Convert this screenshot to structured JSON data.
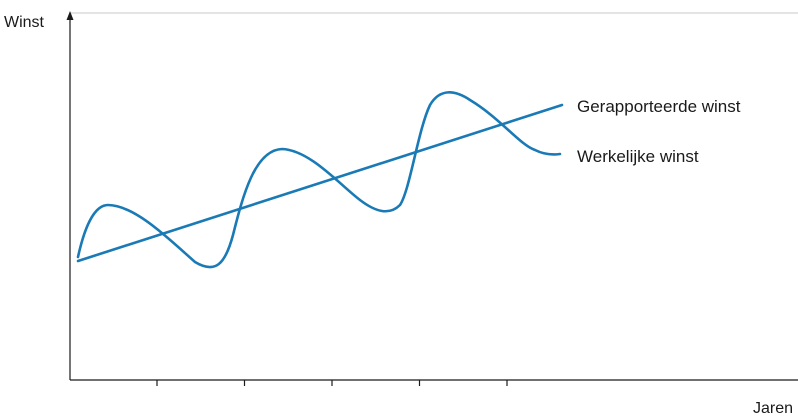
{
  "chart_data": {
    "type": "line",
    "ylabel": "Winst",
    "xlabel": "Jaren",
    "grid": false,
    "x_ticks": 5,
    "series": [
      {
        "name": "Gerapporteerde winst",
        "kind": "trend"
      },
      {
        "name": "Werkelijke winst",
        "kind": "cyclical"
      }
    ],
    "colors": {
      "line": "#1a7ab5",
      "axis": "#1a1a1a",
      "frame": "#c8c8c8"
    }
  }
}
